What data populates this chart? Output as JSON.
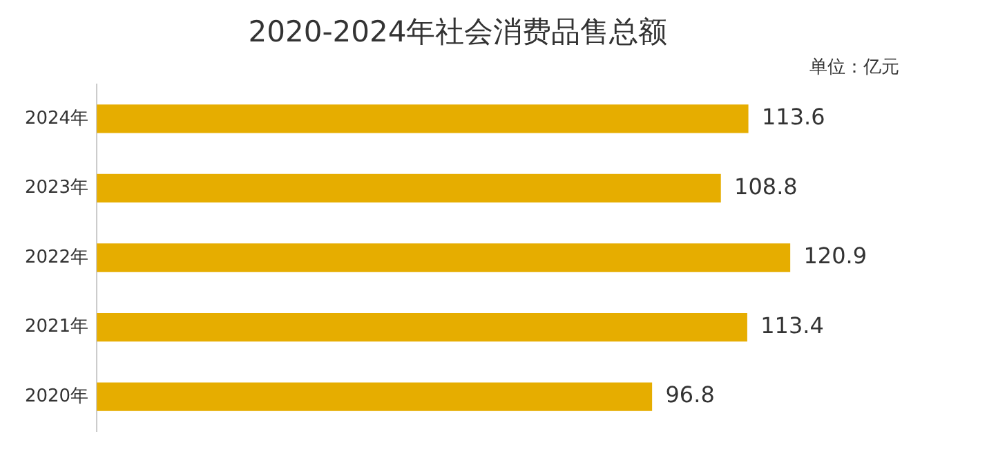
{
  "chart_data": {
    "type": "bar",
    "orientation": "horizontal",
    "title": "2020-2024年社会消费品售总额",
    "annotations": [
      "单位：亿元"
    ],
    "categories": [
      "2024年",
      "2023年",
      "2022年",
      "2021年",
      "2020年"
    ],
    "values": [
      113.6,
      108.8,
      120.9,
      113.4,
      96.8
    ],
    "color": "#e6ad00",
    "data_labels": true,
    "legend": false
  }
}
